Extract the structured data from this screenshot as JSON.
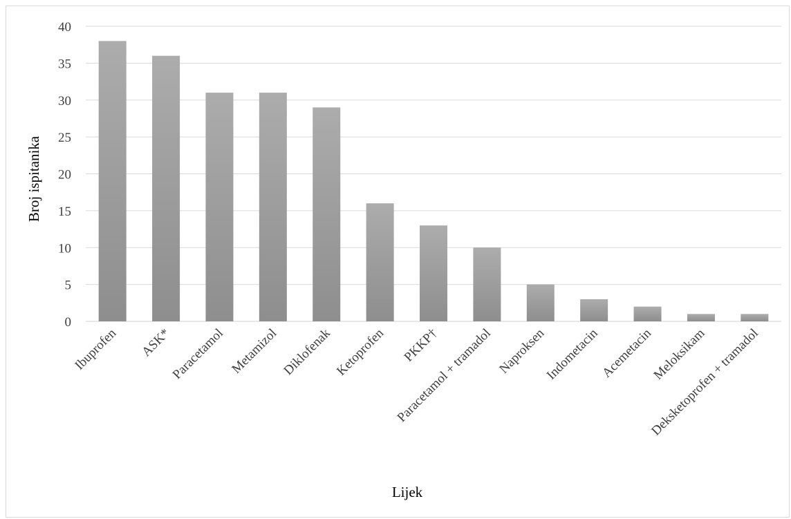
{
  "chart_data": {
    "type": "bar",
    "title": "",
    "xlabel": "Lijek",
    "ylabel": "Broj ispitanika",
    "ylim": [
      0,
      40
    ],
    "yticks": [
      "0",
      "5",
      "10",
      "15",
      "20",
      "25",
      "30",
      "35",
      "40"
    ],
    "grid": true,
    "legend": "none",
    "bar_color": "#a0a0a0",
    "categories": [
      "Ibuprofen",
      "ASK*",
      "Paracetamol",
      "Metamizol",
      "Diklofenak",
      "Ketoprofen",
      "PKKP†",
      "Paracetamol + tramadol",
      "Naproksen",
      "Indometacin",
      "Acemetacin",
      "Meloksikam",
      "Deksketoprofen + tramadol"
    ],
    "values": [
      38,
      36,
      31,
      31,
      29,
      16,
      13,
      10,
      5,
      3,
      2,
      1,
      1
    ]
  }
}
